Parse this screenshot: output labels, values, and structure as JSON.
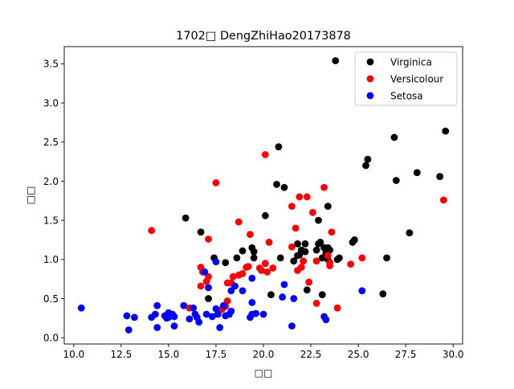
{
  "chart_data": {
    "type": "scatter",
    "title": "1702□ DengZhiHao20173878",
    "xlabel": "□□",
    "ylabel": "□□",
    "xlim": [
      9.5,
      30.5
    ],
    "ylim": [
      -0.08,
      3.72
    ],
    "xticks": [
      "10.0",
      "12.5",
      "15.0",
      "17.5",
      "20.0",
      "22.5",
      "25.0",
      "27.5",
      "30.0"
    ],
    "xtick_values": [
      10.0,
      12.5,
      15.0,
      17.5,
      20.0,
      22.5,
      25.0,
      27.5,
      30.0
    ],
    "yticks": [
      "0.0",
      "0.5",
      "1.0",
      "1.5",
      "2.0",
      "2.5",
      "3.0",
      "3.5"
    ],
    "ytick_values": [
      0.0,
      0.5,
      1.0,
      1.5,
      2.0,
      2.5,
      3.0,
      3.5
    ],
    "legend_position": "top-right",
    "grid": false,
    "series": [
      {
        "name": "Virginica",
        "color": "#000000",
        "points": [
          [
            23.8,
            3.54
          ],
          [
            29.6,
            2.64
          ],
          [
            26.9,
            2.56
          ],
          [
            20.8,
            2.44
          ],
          [
            25.5,
            2.28
          ],
          [
            25.4,
            2.2
          ],
          [
            28.1,
            2.11
          ],
          [
            29.3,
            2.06
          ],
          [
            27.0,
            2.01
          ],
          [
            20.7,
            1.96
          ],
          [
            21.1,
            1.92
          ],
          [
            23.4,
            1.68
          ],
          [
            20.1,
            1.56
          ],
          [
            15.9,
            1.53
          ],
          [
            22.9,
            1.5
          ],
          [
            16.7,
            1.35
          ],
          [
            27.7,
            1.34
          ],
          [
            24.8,
            1.25
          ],
          [
            24.7,
            1.22
          ],
          [
            21.8,
            1.2
          ],
          [
            22.2,
            1.2
          ],
          [
            22.9,
            1.2
          ],
          [
            23.0,
            1.22
          ],
          [
            23.2,
            1.15
          ],
          [
            22.0,
            1.12
          ],
          [
            22.2,
            1.1
          ],
          [
            22.8,
            1.12
          ],
          [
            23.4,
            1.15
          ],
          [
            18.9,
            1.11
          ],
          [
            19.4,
            1.15
          ],
          [
            19.5,
            1.1
          ],
          [
            23.5,
            1.12
          ],
          [
            23.3,
            1.08
          ],
          [
            21.8,
            1.05
          ],
          [
            21.9,
            1.06
          ],
          [
            23.1,
            1.02
          ],
          [
            24.0,
            1.02
          ],
          [
            20.9,
            1.02
          ],
          [
            23.4,
            1.0
          ],
          [
            18.6,
            1.02
          ],
          [
            19.5,
            1.02
          ],
          [
            26.5,
            1.02
          ],
          [
            17.4,
            1.02
          ],
          [
            21.6,
            0.98
          ],
          [
            18.0,
            0.96
          ],
          [
            20.4,
            0.55
          ],
          [
            22.3,
            0.61
          ],
          [
            23.1,
            0.55
          ],
          [
            26.3,
            0.56
          ],
          [
            17.1,
            0.5
          ],
          [
            23.9,
            1.0
          ]
        ]
      },
      {
        "name": "Versicolour",
        "color": "#ff0000",
        "points": [
          [
            20.1,
            2.34
          ],
          [
            17.5,
            1.98
          ],
          [
            23.2,
            1.92
          ],
          [
            21.9,
            1.8
          ],
          [
            22.3,
            1.8
          ],
          [
            29.5,
            1.76
          ],
          [
            21.5,
            1.68
          ],
          [
            22.6,
            1.6
          ],
          [
            18.7,
            1.48
          ],
          [
            21.7,
            1.4
          ],
          [
            14.1,
            1.37
          ],
          [
            23.6,
            1.35
          ],
          [
            19.3,
            1.32
          ],
          [
            17.1,
            1.26
          ],
          [
            20.3,
            1.22
          ],
          [
            21.5,
            1.16
          ],
          [
            23.4,
            1.05
          ],
          [
            25.2,
            1.02
          ],
          [
            22.1,
            0.98
          ],
          [
            22.8,
            0.98
          ],
          [
            20.1,
            0.95
          ],
          [
            24.6,
            0.94
          ],
          [
            23.5,
            0.92
          ],
          [
            19.2,
            0.91
          ],
          [
            16.7,
            0.9
          ],
          [
            20.5,
            0.89
          ],
          [
            19.8,
            0.89
          ],
          [
            19.9,
            0.86
          ],
          [
            20.2,
            0.84
          ],
          [
            21.8,
            0.86
          ],
          [
            18.9,
            0.82
          ],
          [
            18.7,
            0.8
          ],
          [
            18.4,
            0.78
          ],
          [
            17.1,
            0.78
          ],
          [
            17.0,
            0.72
          ],
          [
            22.4,
            0.71
          ],
          [
            18.3,
            0.7
          ],
          [
            18.1,
            0.7
          ],
          [
            16.7,
            0.66
          ],
          [
            22.8,
            0.44
          ],
          [
            18.1,
            0.47
          ],
          [
            16.1,
            0.38
          ],
          [
            23.9,
            0.38
          ],
          [
            17.9,
            0.39
          ],
          [
            23.5,
            0.96
          ],
          [
            16.8,
            0.84
          ],
          [
            19.1,
            0.9
          ],
          [
            18.0,
            0.4
          ],
          [
            17.8,
            0.36
          ],
          [
            22.0,
            0.9
          ]
        ]
      },
      {
        "name": "Setosa",
        "color": "#0000ff",
        "points": [
          [
            10.4,
            0.38
          ],
          [
            12.8,
            0.28
          ],
          [
            13.2,
            0.26
          ],
          [
            12.9,
            0.1
          ],
          [
            14.1,
            0.26
          ],
          [
            14.3,
            0.3
          ],
          [
            14.4,
            0.41
          ],
          [
            14.8,
            0.28
          ],
          [
            15.1,
            0.29
          ],
          [
            15.0,
            0.32
          ],
          [
            15.2,
            0.3
          ],
          [
            15.3,
            0.27
          ],
          [
            14.9,
            0.25
          ],
          [
            15.0,
            0.26
          ],
          [
            14.4,
            0.13
          ],
          [
            15.3,
            0.15
          ],
          [
            15.8,
            0.41
          ],
          [
            16.1,
            0.24
          ],
          [
            16.3,
            0.38
          ],
          [
            16.4,
            0.3
          ],
          [
            16.5,
            0.26
          ],
          [
            16.6,
            0.2
          ],
          [
            17.0,
            0.3
          ],
          [
            17.3,
            0.27
          ],
          [
            17.5,
            0.37
          ],
          [
            17.6,
            0.3
          ],
          [
            17.7,
            0.13
          ],
          [
            17.9,
            0.41
          ],
          [
            18.0,
            0.28
          ],
          [
            18.2,
            0.3
          ],
          [
            18.3,
            0.34
          ],
          [
            18.3,
            0.6
          ],
          [
            18.5,
            0.66
          ],
          [
            18.9,
            0.6
          ],
          [
            19.3,
            0.26
          ],
          [
            19.4,
            0.3
          ],
          [
            19.6,
            0.31
          ],
          [
            19.4,
            0.45
          ],
          [
            19.4,
            0.76
          ],
          [
            20.0,
            0.3
          ],
          [
            21.1,
            0.68
          ],
          [
            21.0,
            0.52
          ],
          [
            21.5,
            0.15
          ],
          [
            21.6,
            0.5
          ],
          [
            23.2,
            0.27
          ],
          [
            23.3,
            0.23
          ],
          [
            25.2,
            0.6
          ],
          [
            17.5,
            0.97
          ],
          [
            16.9,
            0.84
          ],
          [
            17.1,
            0.64
          ]
        ]
      }
    ]
  }
}
